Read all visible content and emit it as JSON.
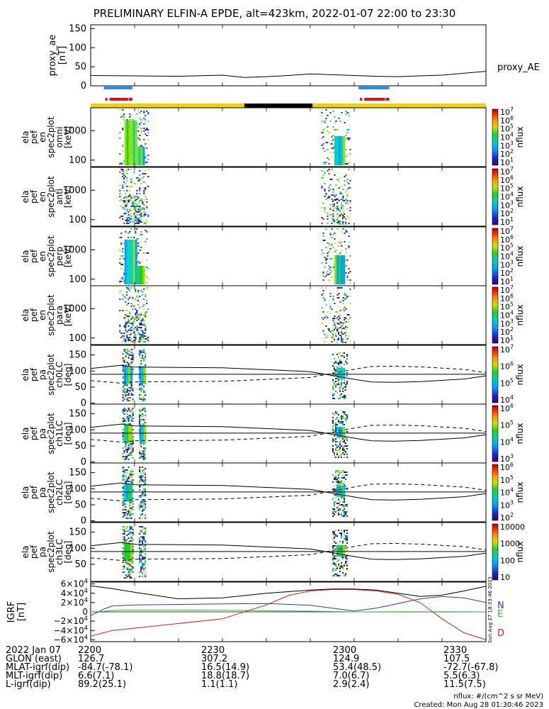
{
  "title": "PRELIMINARY ELFIN-A EPDE, alt=423km, 2022-01-07 22:00 to 23:30",
  "proxy_ae": {
    "ylabel": "proxy_ae",
    "units": "[nT]",
    "legend": "proxy_AE",
    "ticks": [
      "150",
      "100",
      "50",
      "0"
    ]
  },
  "spec_panels": [
    {
      "labels": [
        "ela",
        "pef",
        "en",
        "spec2plot",
        "omni",
        "[keV]"
      ],
      "ticks": [
        "1000",
        "100"
      ],
      "cbar_ticks": [
        "10^7",
        "10^6",
        "10^5",
        "10^4",
        "10^3",
        "10^2",
        "10^1"
      ]
    },
    {
      "labels": [
        "ela",
        "pef",
        "en",
        "spec2plot",
        "anti",
        "[keV]"
      ],
      "ticks": [
        "1000",
        "100"
      ],
      "cbar_ticks": [
        "10^7",
        "10^6",
        "10^5",
        "10^4",
        "10^3",
        "10^2",
        "10^1"
      ]
    },
    {
      "labels": [
        "ela",
        "pef",
        "en",
        "spec2plot",
        "perp",
        "[keV]"
      ],
      "ticks": [
        "1000",
        "100"
      ],
      "cbar_ticks": [
        "10^7",
        "10^6",
        "10^5",
        "10^4",
        "10^3",
        "10^2",
        "10^1"
      ]
    },
    {
      "labels": [
        "ela",
        "pef",
        "en",
        "spec2plot",
        "para",
        "[keV]"
      ],
      "ticks": [
        "1000",
        "100"
      ],
      "cbar_ticks": [
        "10^7",
        "10^6",
        "10^5",
        "10^4",
        "10^3",
        "10^2",
        "10^1"
      ]
    }
  ],
  "pa_panels": [
    {
      "labels": [
        "ela",
        "pef",
        "pa",
        "spec2plot",
        "ch0LC",
        "[deg]"
      ],
      "ticks": [
        "150",
        "100",
        "50",
        "0"
      ],
      "cbar_ticks": [
        "10^7",
        "10^6",
        "10^5",
        "10^4"
      ]
    },
    {
      "labels": [
        "ela",
        "pef",
        "pa",
        "spec2plot",
        "ch1LC",
        "[deg]"
      ],
      "ticks": [
        "150",
        "100",
        "50",
        "0"
      ],
      "cbar_ticks": [
        "10^6",
        "10^5",
        "10^4",
        "10^3"
      ]
    },
    {
      "labels": [
        "ela",
        "pef",
        "pa",
        "spec2plot",
        "ch2LC",
        "[deg]"
      ],
      "ticks": [
        "150",
        "100",
        "50",
        "0"
      ],
      "cbar_ticks": [
        "10^6",
        "10^5",
        "10^4",
        "10^3",
        "10^2"
      ]
    },
    {
      "labels": [
        "ela",
        "pef",
        "pa",
        "spec2plot",
        "ch3LC",
        "[deg]"
      ],
      "ticks": [
        "150",
        "100",
        "50"
      ],
      "cbar_ticks": [
        "10000",
        "1000",
        "100",
        "10"
      ]
    }
  ],
  "cbar_label": "nflux",
  "igrf": {
    "labels": [
      "IGRF",
      "[nT]"
    ],
    "ticks": [
      "6×10^4",
      "4×10^4",
      "2×10^4",
      "0",
      "−2×10^4",
      "−4×10^4",
      "−6×10^4"
    ],
    "legend": [
      "N",
      "E",
      "D"
    ],
    "side_text": "Sun Aug 27 18:33:46 2023"
  },
  "colors": {
    "yellow": "#f5d000",
    "black": "#000000",
    "blue": "#1e90ff",
    "red": "#e01010",
    "N": "#1f3fd0",
    "E": "#2fbf2f",
    "D": "#d02020"
  },
  "chart_data": {
    "type": "spectrogram",
    "x_ticks": [
      "2200",
      "2230",
      "2300",
      "2330"
    ],
    "x_range_minutes": [
      0,
      90
    ],
    "proxy_ae": {
      "x": [
        0,
        10,
        20,
        30,
        35,
        40,
        45,
        50,
        55,
        60,
        65,
        70,
        75,
        80,
        85,
        90
      ],
      "y": [
        27,
        26,
        25,
        28,
        22,
        24,
        27,
        31,
        29,
        27,
        25,
        24,
        26,
        28,
        33,
        38
      ],
      "ylim": [
        0,
        150
      ]
    },
    "science_zones_blue": [
      [
        3,
        9.5
      ],
      [
        61,
        68
      ]
    ],
    "science_zones_red": [
      [
        3,
        9.5
      ],
      [
        61,
        68
      ]
    ],
    "orbit_bar": {
      "yellow": [
        [
          0,
          35
        ],
        [
          50.5,
          90
        ]
      ],
      "black": [
        [
          35,
          50.5
        ]
      ]
    },
    "pa_curves_solid": {
      "x": [
        0,
        7,
        10,
        30,
        50,
        61,
        64,
        69,
        75,
        85,
        90
      ],
      "y": [
        108,
        118,
        112,
        110,
        98,
        72,
        66,
        65,
        67,
        75,
        85
      ]
    },
    "pa_curves_dashed": {
      "x": [
        0,
        7,
        10,
        30,
        50,
        61,
        64,
        69,
        75,
        85,
        90
      ],
      "y": [
        70,
        62,
        66,
        68,
        80,
        108,
        114,
        115,
        113,
        105,
        95
      ]
    },
    "pa_ref_line": 90,
    "igrf_N": {
      "x": [
        0,
        3,
        5,
        10,
        20,
        30,
        40,
        50,
        55,
        60,
        65,
        70,
        75,
        80,
        85,
        90
      ],
      "y": [
        -8000,
        6000,
        13000,
        15000,
        16000,
        17000,
        18000,
        14000,
        8000,
        2000,
        8000,
        18000,
        28000,
        33000,
        30000,
        20000
      ]
    },
    "igrf_E": {
      "x": [
        0,
        3,
        5,
        10,
        20,
        30,
        40,
        50,
        60,
        70,
        80,
        90
      ],
      "y": [
        0,
        1000,
        3000,
        4000,
        4000,
        3500,
        2500,
        1500,
        0,
        -500,
        -500,
        0
      ]
    },
    "igrf_D": {
      "x": [
        0,
        5,
        10,
        20,
        30,
        40,
        45,
        50,
        55,
        60,
        65,
        70,
        75,
        80,
        85,
        90
      ],
      "y": [
        -52000,
        -40000,
        -35000,
        -25000,
        -15000,
        15000,
        35000,
        45000,
        48000,
        48000,
        45000,
        38000,
        20000,
        -15000,
        -45000,
        -60000
      ]
    },
    "igrf_total": {
      "x": [
        0,
        5,
        10,
        20,
        30,
        40,
        50,
        55,
        60,
        65,
        70,
        75,
        80,
        85,
        90
      ],
      "y": [
        56000,
        50000,
        42000,
        28000,
        30000,
        40000,
        47000,
        49000,
        49000,
        47000,
        40000,
        33000,
        36000,
        45000,
        55000
      ]
    },
    "ylim_igrf": [
      -60000,
      60000
    ]
  },
  "footer_rows": [
    {
      "label": "2022 Jan 07",
      "vals": [
        "2200",
        "2230",
        "2300",
        "2330"
      ]
    },
    {
      "label": "GLON (east)",
      "vals": [
        "126.7",
        "307.2",
        "124.9",
        "107.5"
      ]
    },
    {
      "label": "MLAT-igrf(dip)",
      "vals": [
        "-84.7(-78.1)",
        "16.5(14.9)",
        "53.4(48.5)",
        "-72.7(-67.8)"
      ]
    },
    {
      "label": "MLT-igrf(dip)",
      "vals": [
        "6.6(7.1)",
        "18.8(18.7)",
        "7.0(6.7)",
        "5.5(6.3)"
      ]
    },
    {
      "label": "L-igrf(dip)",
      "vals": [
        "89.2(25.1)",
        "1.1(1.1)",
        "2.9(2.4)",
        "11.5(7.5)"
      ]
    }
  ],
  "footer_notes": [
    "nflux: #/(cm^2 s sr MeV)",
    "Created: Mon Aug 28 01:30:46 2023"
  ]
}
